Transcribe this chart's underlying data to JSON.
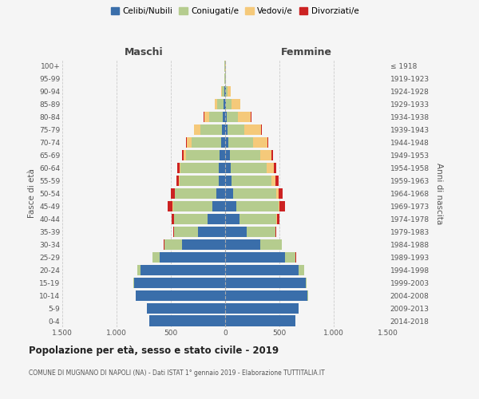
{
  "age_groups": [
    "0-4",
    "5-9",
    "10-14",
    "15-19",
    "20-24",
    "25-29",
    "30-34",
    "35-39",
    "40-44",
    "45-49",
    "50-54",
    "55-59",
    "60-64",
    "65-69",
    "70-74",
    "75-79",
    "80-84",
    "85-89",
    "90-94",
    "95-99",
    "100+"
  ],
  "birth_years": [
    "2014-2018",
    "2009-2013",
    "2004-2008",
    "1999-2003",
    "1994-1998",
    "1989-1993",
    "1984-1988",
    "1979-1983",
    "1974-1978",
    "1969-1973",
    "1964-1968",
    "1959-1963",
    "1954-1958",
    "1949-1953",
    "1944-1948",
    "1939-1943",
    "1934-1938",
    "1929-1933",
    "1924-1928",
    "1919-1923",
    "≤ 1918"
  ],
  "males": {
    "celibi": [
      700,
      720,
      820,
      840,
      780,
      600,
      400,
      250,
      160,
      120,
      80,
      60,
      60,
      50,
      40,
      30,
      20,
      15,
      8,
      2,
      2
    ],
    "coniugati": [
      0,
      0,
      2,
      5,
      30,
      70,
      160,
      220,
      310,
      360,
      380,
      360,
      350,
      310,
      270,
      200,
      130,
      60,
      25,
      3,
      2
    ],
    "vedovi": [
      0,
      0,
      0,
      0,
      0,
      0,
      0,
      0,
      2,
      2,
      5,
      5,
      10,
      20,
      40,
      55,
      40,
      20,
      5,
      0,
      0
    ],
    "divorziati": [
      0,
      0,
      0,
      0,
      0,
      2,
      5,
      10,
      20,
      45,
      35,
      25,
      20,
      15,
      10,
      5,
      5,
      2,
      0,
      0,
      0
    ]
  },
  "females": {
    "nubili": [
      650,
      680,
      760,
      740,
      680,
      550,
      320,
      200,
      130,
      100,
      70,
      60,
      55,
      45,
      30,
      20,
      15,
      10,
      5,
      2,
      2
    ],
    "coniugate": [
      0,
      0,
      2,
      10,
      50,
      100,
      200,
      260,
      340,
      390,
      400,
      370,
      330,
      280,
      230,
      160,
      100,
      50,
      20,
      3,
      1
    ],
    "vedove": [
      0,
      0,
      0,
      0,
      0,
      0,
      0,
      2,
      5,
      10,
      20,
      30,
      60,
      100,
      130,
      150,
      120,
      80,
      30,
      5,
      2
    ],
    "divorziate": [
      0,
      0,
      0,
      0,
      0,
      2,
      5,
      10,
      25,
      50,
      40,
      30,
      25,
      15,
      10,
      5,
      5,
      2,
      0,
      0,
      0
    ]
  },
  "colors": {
    "celibi": "#3a6eaa",
    "coniugati": "#b5cc8e",
    "vedovi": "#f5c97a",
    "divorziati": "#cc2222"
  },
  "title": "Popolazione per età, sesso e stato civile - 2019",
  "subtitle": "COMUNE DI MUGNANO DI NAPOLI (NA) - Dati ISTAT 1° gennaio 2019 - Elaborazione TUTTITALIA.IT",
  "xlabel_maschi": "Maschi",
  "xlabel_femmine": "Femmine",
  "ylabel_left": "Fasce di età",
  "ylabel_right": "Anni di nascita",
  "xlim": 1500,
  "background_color": "#f5f5f5",
  "grid_color": "#cccccc"
}
